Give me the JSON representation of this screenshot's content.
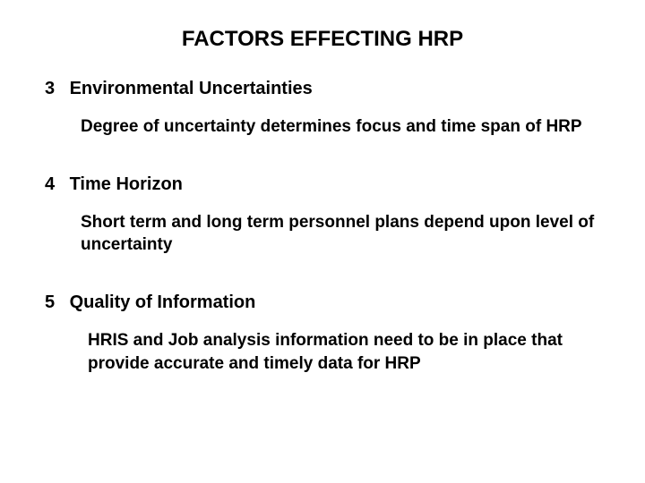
{
  "title": "FACTORS EFFECTING HRP",
  "sections": [
    {
      "num": "3",
      "heading": "Environmental Uncertainties",
      "body": "Degree of uncertainty determines focus and time span of HRP"
    },
    {
      "num": "4",
      "heading": "Time Horizon",
      "body": "Short term and long term personnel plans depend upon level of uncertainty"
    },
    {
      "num": "5",
      "heading": "Quality of Information",
      "body": "HRIS and Job analysis information need to be in place that provide accurate and timely data for HRP"
    }
  ],
  "colors": {
    "background": "#ffffff",
    "text": "#000000"
  },
  "typography": {
    "title_fontsize": 24,
    "heading_fontsize": 20,
    "body_fontsize": 19,
    "font_family": "Arial",
    "font_weight": "bold"
  }
}
